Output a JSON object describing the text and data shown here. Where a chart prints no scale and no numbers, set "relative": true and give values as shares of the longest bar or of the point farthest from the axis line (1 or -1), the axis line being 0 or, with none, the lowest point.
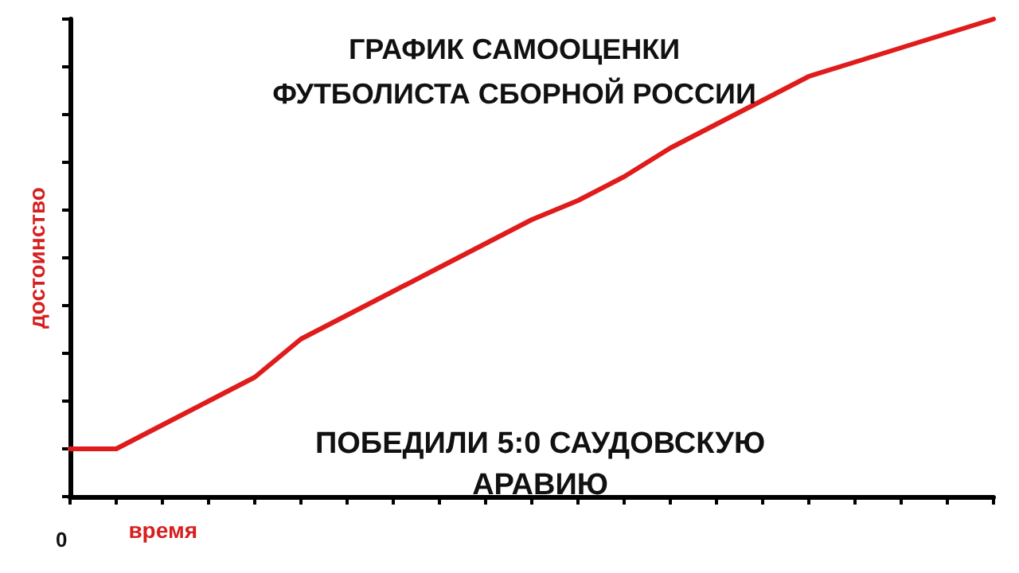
{
  "chart_data": {
    "type": "line",
    "title": "ГРАФИК САМООЦЕНКИ\nФУТБОЛИСТА СБОРНОЙ РОССИИ",
    "xlabel": "время",
    "ylabel": "достоинство",
    "relative": true,
    "annotations": [
      "ПОБЕДИЛИ 5:0 САУДОВСКУЮ\nАРАВИЮ",
      "0"
    ],
    "categories": [
      null,
      null,
      null,
      null,
      null,
      null,
      null,
      null,
      null,
      null,
      null,
      null,
      null,
      null,
      null,
      null,
      null,
      null,
      null,
      null,
      null
    ],
    "series": [
      {
        "color": "#e01b1b",
        "values": [
          0.1,
          0.1,
          0.15,
          0.2,
          0.25,
          0.33,
          0.38,
          0.43,
          0.48,
          0.53,
          0.58,
          0.62,
          0.67,
          0.73,
          0.78,
          0.83,
          0.88,
          0.91,
          0.94,
          0.97,
          1.0
        ]
      }
    ],
    "grid": false,
    "marker": "none",
    "line_style": "solid"
  }
}
